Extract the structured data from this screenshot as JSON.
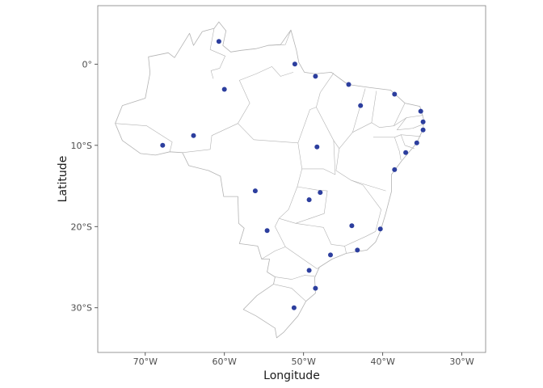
{
  "chart_data": {
    "type": "scatter",
    "title": "",
    "xlabel": "Longitude",
    "ylabel": "Latitude",
    "xlim": [
      -76,
      -27
    ],
    "ylim": [
      -35.5,
      7.2
    ],
    "x_ticks": [
      {
        "value": -70,
        "label": "70°W"
      },
      {
        "value": -60,
        "label": "60°W"
      },
      {
        "value": -50,
        "label": "50°W"
      },
      {
        "value": -40,
        "label": "40°W"
      },
      {
        "value": -30,
        "label": "30°W"
      }
    ],
    "y_ticks": [
      {
        "value": 0,
        "label": "0°"
      },
      {
        "value": -10,
        "label": "10°S"
      },
      {
        "value": -20,
        "label": "20°S"
      },
      {
        "value": -30,
        "label": "30°S"
      }
    ],
    "grid": false,
    "point_color": "#2c3e9e",
    "outline_color": "#b3b3b3",
    "panel_border_color": "#7f7f7f",
    "points": [
      {
        "x": -60.7,
        "y": 2.8
      },
      {
        "x": -51.1,
        "y": 0.0
      },
      {
        "x": -48.5,
        "y": -1.5
      },
      {
        "x": -44.3,
        "y": -2.5
      },
      {
        "x": -38.5,
        "y": -3.7
      },
      {
        "x": -35.2,
        "y": -5.8
      },
      {
        "x": -34.9,
        "y": -7.1
      },
      {
        "x": -34.9,
        "y": -8.1
      },
      {
        "x": -42.8,
        "y": -5.1
      },
      {
        "x": -60.0,
        "y": -3.1
      },
      {
        "x": -63.9,
        "y": -8.8
      },
      {
        "x": -67.8,
        "y": -10.0
      },
      {
        "x": -48.3,
        "y": -10.2
      },
      {
        "x": -35.7,
        "y": -9.7
      },
      {
        "x": -37.1,
        "y": -10.9
      },
      {
        "x": -38.5,
        "y": -13.0
      },
      {
        "x": -56.1,
        "y": -15.6
      },
      {
        "x": -47.9,
        "y": -15.8
      },
      {
        "x": -49.3,
        "y": -16.7
      },
      {
        "x": -43.9,
        "y": -19.9
      },
      {
        "x": -40.3,
        "y": -20.3
      },
      {
        "x": -54.6,
        "y": -20.5
      },
      {
        "x": -43.2,
        "y": -22.9
      },
      {
        "x": -46.6,
        "y": -23.5
      },
      {
        "x": -49.3,
        "y": -25.4
      },
      {
        "x": -48.5,
        "y": -27.6
      },
      {
        "x": -51.2,
        "y": -30.0
      }
    ],
    "brazil_outline": [
      [
        -73.8,
        -7.3
      ],
      [
        -72.9,
        -9.4
      ],
      [
        -70.6,
        -11.0
      ],
      [
        -68.7,
        -11.2
      ],
      [
        -66.9,
        -10.8
      ],
      [
        -65.3,
        -10.9
      ],
      [
        -64.5,
        -12.5
      ],
      [
        -62.0,
        -13.1
      ],
      [
        -60.5,
        -13.8
      ],
      [
        -60.1,
        -16.3
      ],
      [
        -58.3,
        -16.3
      ],
      [
        -58.2,
        -19.6
      ],
      [
        -57.5,
        -20.2
      ],
      [
        -58.1,
        -22.1
      ],
      [
        -55.8,
        -22.4
      ],
      [
        -55.3,
        -24.0
      ],
      [
        -54.3,
        -24.0
      ],
      [
        -54.6,
        -25.6
      ],
      [
        -53.6,
        -26.2
      ],
      [
        -53.8,
        -27.1
      ],
      [
        -55.9,
        -28.5
      ],
      [
        -57.6,
        -30.2
      ],
      [
        -56.0,
        -31.0
      ],
      [
        -53.6,
        -32.5
      ],
      [
        -53.4,
        -33.7
      ],
      [
        -52.5,
        -33.0
      ],
      [
        -50.7,
        -31.0
      ],
      [
        -49.7,
        -29.2
      ],
      [
        -48.5,
        -28.2
      ],
      [
        -48.6,
        -26.3
      ],
      [
        -48.0,
        -25.0
      ],
      [
        -46.4,
        -24.0
      ],
      [
        -44.6,
        -23.3
      ],
      [
        -42.0,
        -22.9
      ],
      [
        -40.9,
        -21.9
      ],
      [
        -40.3,
        -20.6
      ],
      [
        -39.6,
        -18.3
      ],
      [
        -38.9,
        -15.7
      ],
      [
        -38.9,
        -13.6
      ],
      [
        -37.6,
        -11.9
      ],
      [
        -35.7,
        -9.7
      ],
      [
        -34.9,
        -8.0
      ],
      [
        -34.8,
        -6.9
      ],
      [
        -35.3,
        -5.2
      ],
      [
        -37.2,
        -4.8
      ],
      [
        -39.0,
        -3.2
      ],
      [
        -41.5,
        -2.9
      ],
      [
        -44.4,
        -2.5
      ],
      [
        -46.5,
        -1.0
      ],
      [
        -48.5,
        -1.2
      ],
      [
        -49.9,
        -1.0
      ],
      [
        -50.6,
        0.2
      ],
      [
        -50.9,
        1.7
      ],
      [
        -51.6,
        4.2
      ],
      [
        -52.9,
        2.4
      ],
      [
        -54.5,
        2.3
      ],
      [
        -56.0,
        1.9
      ],
      [
        -57.9,
        1.7
      ],
      [
        -59.2,
        1.5
      ],
      [
        -60.2,
        2.3
      ],
      [
        -59.8,
        4.1
      ],
      [
        -60.7,
        5.2
      ],
      [
        -61.3,
        4.4
      ],
      [
        -62.8,
        4.0
      ],
      [
        -63.9,
        2.3
      ],
      [
        -64.4,
        3.8
      ],
      [
        -66.3,
        0.8
      ],
      [
        -67.1,
        1.4
      ],
      [
        -69.6,
        0.9
      ],
      [
        -69.4,
        -1.1
      ],
      [
        -70.0,
        -4.2
      ],
      [
        -72.9,
        -5.1
      ],
      [
        -73.8,
        -7.3
      ]
    ],
    "state_borders": [
      [
        [
          -61.3,
          4.4
        ],
        [
          -61.8,
          1.8
        ],
        [
          -59.9,
          1.0
        ],
        [
          -60.6,
          -0.5
        ],
        [
          -61.7,
          -0.8
        ],
        [
          -61.4,
          -1.8
        ]
      ],
      [
        [
          -51.6,
          4.2
        ],
        [
          -52.3,
          2.4
        ],
        [
          -54.5,
          2.3
        ]
      ],
      [
        [
          -51.3,
          -1.0
        ],
        [
          -52.9,
          -1.5
        ],
        [
          -54.0,
          -0.3
        ],
        [
          -56.0,
          -1.2
        ],
        [
          -58.1,
          -2.0
        ],
        [
          -56.8,
          -4.8
        ],
        [
          -58.3,
          -7.3
        ],
        [
          -56.3,
          -9.3
        ]
      ],
      [
        [
          -58.3,
          -7.3
        ],
        [
          -61.6,
          -8.8
        ],
        [
          -61.8,
          -10.5
        ],
        [
          -65.3,
          -10.9
        ]
      ],
      [
        [
          -66.9,
          -10.8
        ],
        [
          -66.6,
          -9.6
        ],
        [
          -69.8,
          -7.6
        ],
        [
          -73.8,
          -7.3
        ]
      ],
      [
        [
          -56.3,
          -9.3
        ],
        [
          -50.7,
          -9.7
        ],
        [
          -50.2,
          -12.9
        ],
        [
          -50.8,
          -15.1
        ],
        [
          -51.9,
          -17.9
        ],
        [
          -53.1,
          -19.0
        ]
      ],
      [
        [
          -50.2,
          -12.9
        ],
        [
          -47.5,
          -12.9
        ],
        [
          -46.0,
          -13.6
        ]
      ],
      [
        [
          -50.7,
          -9.7
        ],
        [
          -49.2,
          -5.6
        ],
        [
          -48.4,
          -5.3
        ],
        [
          -46.2,
          -9.4
        ],
        [
          -46.0,
          -13.6
        ]
      ],
      [
        [
          -48.4,
          -5.3
        ],
        [
          -47.9,
          -3.5
        ],
        [
          -46.2,
          -1.1
        ]
      ],
      [
        [
          -46.2,
          -9.4
        ],
        [
          -45.5,
          -10.4
        ],
        [
          -43.8,
          -8.4
        ],
        [
          -42.2,
          -3.0
        ]
      ],
      [
        [
          -43.8,
          -8.4
        ],
        [
          -41.4,
          -7.2
        ],
        [
          -40.8,
          -3.3
        ]
      ],
      [
        [
          -41.4,
          -7.2
        ],
        [
          -40.4,
          -7.8
        ],
        [
          -38.6,
          -7.6
        ],
        [
          -37.2,
          -4.8
        ]
      ],
      [
        [
          -38.6,
          -7.6
        ],
        [
          -37.0,
          -6.6
        ],
        [
          -34.9,
          -6.3
        ]
      ],
      [
        [
          -37.0,
          -6.6
        ],
        [
          -38.2,
          -8.1
        ],
        [
          -36.2,
          -7.9
        ],
        [
          -34.9,
          -7.4
        ]
      ],
      [
        [
          -41.2,
          -9.0
        ],
        [
          -38.5,
          -9.0
        ],
        [
          -37.7,
          -8.7
        ],
        [
          -35.2,
          -8.9
        ]
      ],
      [
        [
          -37.7,
          -8.7
        ],
        [
          -37.2,
          -10.0
        ],
        [
          -36.0,
          -10.4
        ]
      ],
      [
        [
          -38.5,
          -9.0
        ],
        [
          -37.9,
          -10.7
        ],
        [
          -37.7,
          -11.8
        ]
      ],
      [
        [
          -45.5,
          -10.4
        ],
        [
          -45.9,
          -13.1
        ],
        [
          -44.0,
          -14.3
        ],
        [
          -39.6,
          -15.6
        ]
      ],
      [
        [
          -50.8,
          -15.1
        ],
        [
          -48.3,
          -15.5
        ],
        [
          -47.0,
          -15.6
        ],
        [
          -47.4,
          -18.4
        ],
        [
          -51.0,
          -19.6
        ],
        [
          -53.1,
          -19.0
        ]
      ],
      [
        [
          -44.0,
          -14.3
        ],
        [
          -42.5,
          -14.9
        ],
        [
          -40.2,
          -17.9
        ],
        [
          -40.9,
          -20.6
        ]
      ],
      [
        [
          -40.9,
          -20.6
        ],
        [
          -42.1,
          -21.2
        ],
        [
          -44.8,
          -22.4
        ],
        [
          -46.5,
          -22.2
        ],
        [
          -47.5,
          -20.1
        ],
        [
          -51.0,
          -19.6
        ]
      ],
      [
        [
          -44.8,
          -22.4
        ],
        [
          -44.6,
          -23.3
        ]
      ],
      [
        [
          -53.1,
          -19.0
        ],
        [
          -53.6,
          -20.0
        ],
        [
          -52.3,
          -22.5
        ],
        [
          -53.6,
          -23.0
        ],
        [
          -55.3,
          -24.0
        ]
      ],
      [
        [
          -52.3,
          -22.5
        ],
        [
          -48.3,
          -25.2
        ],
        [
          -48.0,
          -25.0
        ]
      ],
      [
        [
          -53.6,
          -26.2
        ],
        [
          -51.5,
          -26.5
        ],
        [
          -49.9,
          -26.0
        ],
        [
          -48.6,
          -26.1
        ]
      ],
      [
        [
          -53.8,
          -27.1
        ],
        [
          -51.5,
          -27.6
        ],
        [
          -49.7,
          -29.2
        ]
      ]
    ]
  }
}
